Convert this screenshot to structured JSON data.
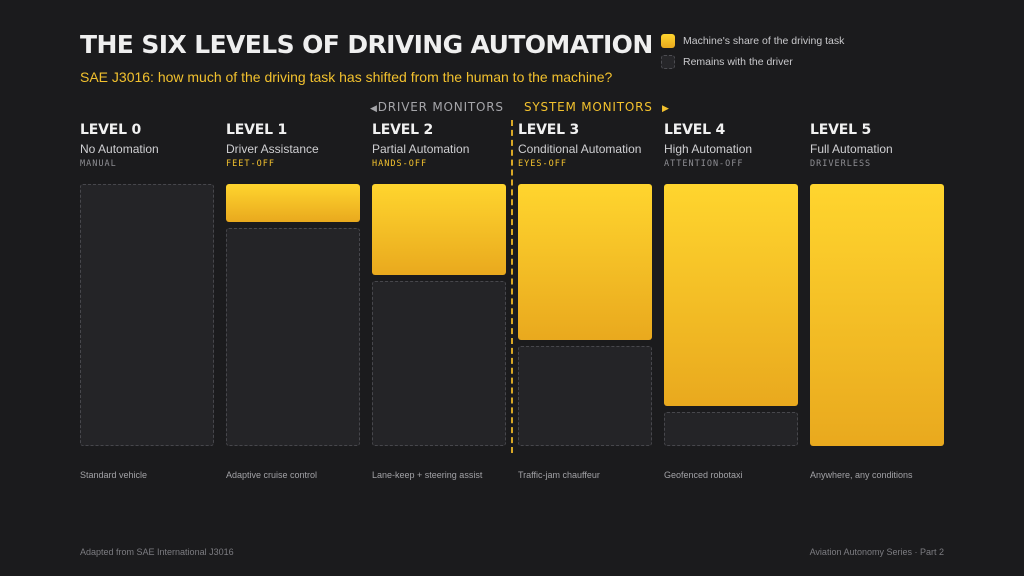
{
  "title": "THE SIX LEVELS OF DRIVING AUTOMATION",
  "subtitle": "SAE J3016: how much of the driving task has shifted from the human to the machine?",
  "legend": {
    "machine": "Machine's share of the driving task",
    "driver": "Remains with the driver"
  },
  "monitor_labels": {
    "driver": "DRIVER MONITORS",
    "system": "SYSTEM MONITORS",
    "driver_arrow": "◀",
    "system_arrow": "▶"
  },
  "colors": {
    "accent": "#f2c12e",
    "machine_top": "#ffd52e",
    "machine_bottom": "#e9a91e",
    "background": "#1b1b1d"
  },
  "levels": [
    {
      "name": "LEVEL 0",
      "desc": "No Automation",
      "tag": "MANUAL",
      "tag_accent": false,
      "machine_share": 0,
      "example": "Standard vehicle"
    },
    {
      "name": "LEVEL 1",
      "desc": "Driver Assistance",
      "tag": "FEET-OFF",
      "tag_accent": true,
      "machine_share": 0.15,
      "example": "Adaptive cruise control"
    },
    {
      "name": "LEVEL 2",
      "desc": "Partial Automation",
      "tag": "HANDS-OFF",
      "tag_accent": true,
      "machine_share": 0.35,
      "example": "Lane-keep + steering assist"
    },
    {
      "name": "LEVEL 3",
      "desc": "Conditional Automation",
      "tag": "EYES-OFF",
      "tag_accent": true,
      "machine_share": 0.6,
      "example": "Traffic-jam chauffeur"
    },
    {
      "name": "LEVEL 4",
      "desc": "High Automation",
      "tag": "ATTENTION-OFF",
      "tag_accent": false,
      "machine_share": 0.85,
      "example": "Geofenced robotaxi"
    },
    {
      "name": "LEVEL 5",
      "desc": "Full Automation",
      "tag": "DRIVERLESS",
      "tag_accent": false,
      "machine_share": 1,
      "example": "Anywhere, any conditions"
    }
  ],
  "footer": {
    "left": "Adapted from SAE International J3016",
    "right": "Aviation Autonomy Series · Part 2"
  }
}
